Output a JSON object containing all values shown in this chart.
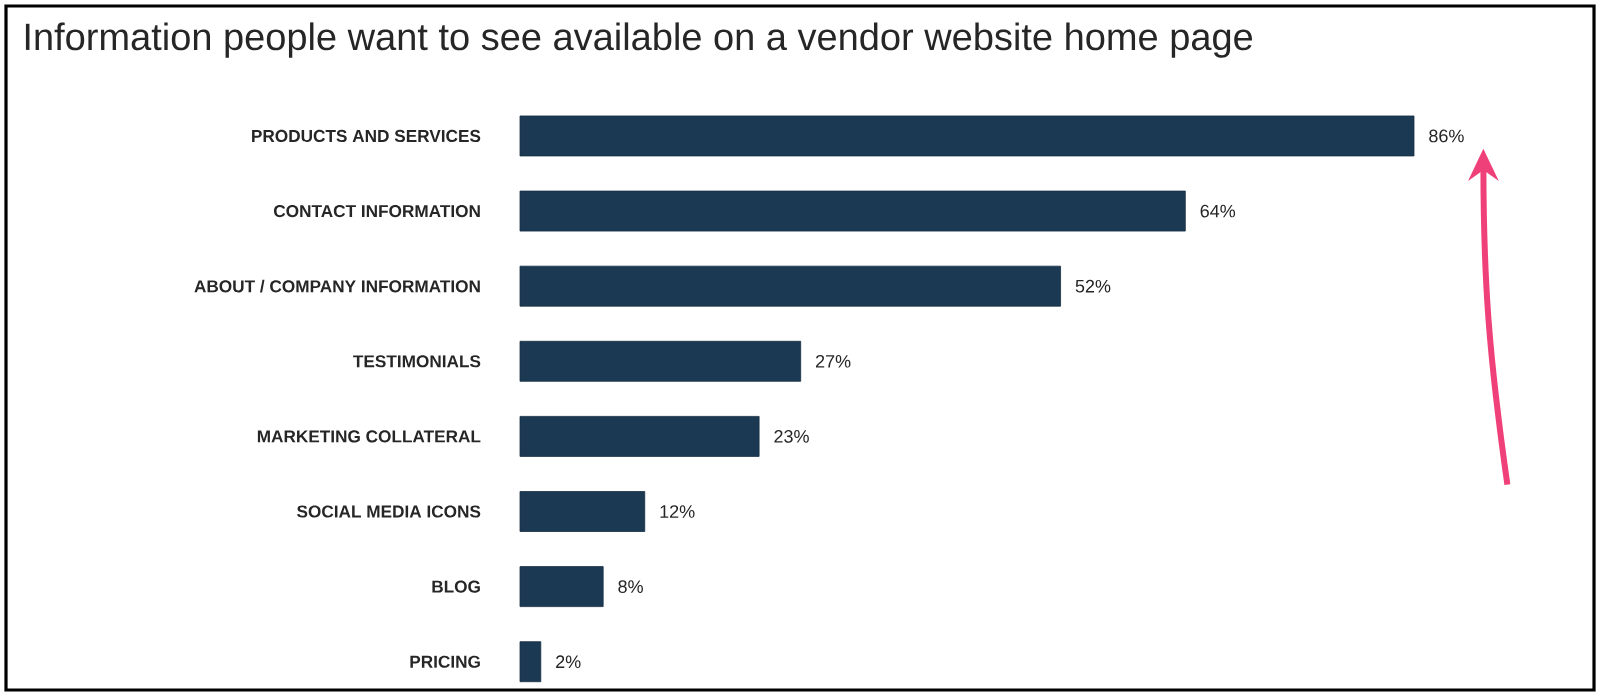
{
  "chart_data": {
    "type": "bar",
    "orientation": "horizontal",
    "title": "Information people want to see available on a vendor website home page",
    "categories": [
      "PRODUCTS AND SERVICES",
      "CONTACT INFORMATION",
      "ABOUT / COMPANY INFORMATION",
      "TESTIMONIALS",
      "MARKETING COLLATERAL",
      "SOCIAL MEDIA ICONS",
      "BLOG",
      "PRICING"
    ],
    "values": [
      86,
      64,
      52,
      27,
      23,
      12,
      8,
      2
    ],
    "value_labels": [
      "86%",
      "64%",
      "52%",
      "27%",
      "23%",
      "12%",
      "8%",
      "2%"
    ],
    "color": "#1c3954",
    "tick_labels": "y"
  }
}
